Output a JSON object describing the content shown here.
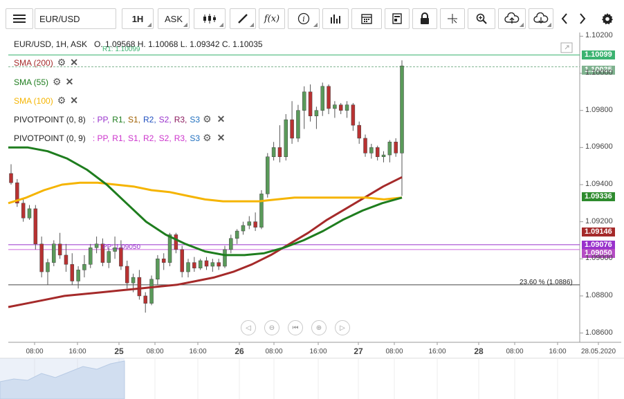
{
  "toolbar": {
    "symbol": "EUR/USD",
    "timeframe": "1H",
    "price_type": "ASK",
    "icons": [
      "menu-icon",
      "candlestick-icon",
      "draw-icon",
      "function-icon",
      "info-icon",
      "bar-chart-icon",
      "calendar-icon",
      "report-icon",
      "lock-icon",
      "crosshair-icon",
      "zoom-icon",
      "cloud-upload-icon",
      "cloud-download-icon",
      "prev-icon",
      "next-icon",
      "settings-icon"
    ]
  },
  "header": {
    "instrument_line": "EUR/USD, 1H, ASK",
    "ohlc": "O. 1.09568 H. 1.10068 L. 1.09342 C. 1.10035",
    "r1_label": "R1: 1.10099"
  },
  "indicators": [
    {
      "label": "SMA (200)",
      "color": "#a52a2a"
    },
    {
      "label": "SMA (55)",
      "color": "#1e7d1e"
    },
    {
      "label": "SMA (100)",
      "color": "#f5b400"
    }
  ],
  "pivots": [
    {
      "label": "PIVOTPOINT (0, 8)",
      "parts": [
        ": PP,",
        "R1,",
        "S1,",
        "R2,",
        "S2,",
        "R3,",
        "S3"
      ],
      "colors": [
        "#9932cc",
        "#1e7d1e",
        "#a06000",
        "#1f4fbf",
        "#9932cc",
        "#8b1a5e",
        "#1f6fbf"
      ]
    },
    {
      "label": "PIVOTPOINT (0, 9)",
      "parts": [
        ": PP,",
        "R1,",
        "S1,",
        "R2,",
        "S2,",
        "R3,",
        "S3"
      ],
      "colors": [
        "#cc33cc",
        "#cc33cc",
        "#cc33cc",
        "#cc33cc",
        "#cc33cc",
        "#cc33cc",
        "#1f6fbf"
      ]
    }
  ],
  "annotations": {
    "pp_label": "PP: 1.09050",
    "fib_label": "23.60 % (1.0886)"
  },
  "price_tags": [
    {
      "value": "1.10099",
      "color": "#3cb371",
      "price": 1.10099
    },
    {
      "value": "1.10035",
      "color": "#7fb28f",
      "price": 1.10035
    },
    {
      "value": "1.09336",
      "color": "#2e8b2e",
      "price": 1.09336
    },
    {
      "value": "1.09146",
      "color": "#a52a2a",
      "price": 1.09146
    },
    {
      "value": "1.09076",
      "color": "#9932cc",
      "price": 1.09076
    },
    {
      "value": "1.09050",
      "color": "#b54cc4",
      "price": 1.0905
    }
  ],
  "chart_data": {
    "type": "candlestick",
    "y_ticks": [
      "1.10200",
      "1.10000",
      "1.09800",
      "1.09600",
      "1.09400",
      "1.09200",
      "1.09000",
      "1.08800",
      "1.08600"
    ],
    "x_labels": [
      {
        "text": "08:00",
        "day": false
      },
      {
        "text": "16:00",
        "day": false
      },
      {
        "text": "25",
        "day": true
      },
      {
        "text": "08:00",
        "day": false
      },
      {
        "text": "16:00",
        "day": false
      },
      {
        "text": "26",
        "day": true
      },
      {
        "text": "08:00",
        "day": false
      },
      {
        "text": "16:00",
        "day": false
      },
      {
        "text": "27",
        "day": true
      },
      {
        "text": "08:00",
        "day": false
      },
      {
        "text": "16:00",
        "day": false
      },
      {
        "text": "28",
        "day": true
      },
      {
        "text": "08:00",
        "day": false
      },
      {
        "text": "16:00",
        "day": false
      },
      {
        "text": "28.05.2020",
        "day": false
      }
    ],
    "ylim": [
      1.0855,
      1.1022
    ],
    "candles": [
      [
        1.0946,
        1.0951,
        1.094,
        1.0941
      ],
      [
        1.0941,
        1.0943,
        1.0928,
        1.093
      ],
      [
        1.093,
        1.0932,
        1.092,
        1.0922
      ],
      [
        1.0922,
        1.0929,
        1.0921,
        1.0927
      ],
      [
        1.0927,
        1.0929,
        1.0905,
        1.0908
      ],
      [
        1.0908,
        1.0912,
        1.089,
        1.0893
      ],
      [
        1.0893,
        1.09,
        1.0886,
        1.0898
      ],
      [
        1.0898,
        1.091,
        1.0896,
        1.0908
      ],
      [
        1.0908,
        1.0914,
        1.09,
        1.0902
      ],
      [
        1.0902,
        1.0908,
        1.0893,
        1.0897
      ],
      [
        1.0897,
        1.0903,
        1.0886,
        1.0888
      ],
      [
        1.0888,
        1.0896,
        1.0884,
        1.0894
      ],
      [
        1.0894,
        1.0902,
        1.089,
        1.0897
      ],
      [
        1.0897,
        1.0908,
        1.0895,
        1.0906
      ],
      [
        1.0906,
        1.0912,
        1.0903,
        1.0908
      ],
      [
        1.0908,
        1.0911,
        1.0896,
        1.0898
      ],
      [
        1.0898,
        1.0906,
        1.0895,
        1.0904
      ],
      [
        1.0904,
        1.0912,
        1.09,
        1.0906
      ],
      [
        1.0906,
        1.091,
        1.0894,
        1.0896
      ],
      [
        1.0896,
        1.0899,
        1.0884,
        1.0887
      ],
      [
        1.0887,
        1.0892,
        1.0882,
        1.089
      ],
      [
        1.089,
        1.0894,
        1.0878,
        1.088
      ],
      [
        1.088,
        1.0882,
        1.0871,
        1.0876
      ],
      [
        1.0876,
        1.0891,
        1.0875,
        1.0889
      ],
      [
        1.0889,
        1.0902,
        1.0886,
        1.09
      ],
      [
        1.09,
        1.0903,
        1.0894,
        1.0898
      ],
      [
        1.0898,
        1.0914,
        1.0896,
        1.0913
      ],
      [
        1.0913,
        1.0914,
        1.0903,
        1.0905
      ],
      [
        1.0905,
        1.0907,
        1.089,
        1.0893
      ],
      [
        1.0893,
        1.09,
        1.089,
        1.0898
      ],
      [
        1.0898,
        1.0901,
        1.0893,
        1.0895
      ],
      [
        1.0895,
        1.09,
        1.0894,
        1.0899
      ],
      [
        1.0899,
        1.0901,
        1.0894,
        1.0896
      ],
      [
        1.0896,
        1.09,
        1.0893,
        1.0898
      ],
      [
        1.0898,
        1.09,
        1.0894,
        1.0896
      ],
      [
        1.0896,
        1.0907,
        1.0895,
        1.0905
      ],
      [
        1.0905,
        1.0913,
        1.0903,
        1.0911
      ],
      [
        1.0911,
        1.0916,
        1.0908,
        1.0915
      ],
      [
        1.0915,
        1.092,
        1.0913,
        1.0918
      ],
      [
        1.0918,
        1.0923,
        1.0916,
        1.092
      ],
      [
        1.092,
        1.0925,
        1.0915,
        1.0917
      ],
      [
        1.0917,
        1.0937,
        1.0916,
        1.0935
      ],
      [
        1.0935,
        1.0957,
        1.0933,
        1.0955
      ],
      [
        1.0955,
        1.0963,
        1.0953,
        1.096
      ],
      [
        1.096,
        1.0972,
        1.0952,
        1.0955
      ],
      [
        1.0955,
        1.0978,
        1.0953,
        1.0975
      ],
      [
        1.0975,
        1.0985,
        1.0962,
        1.0965
      ],
      [
        1.0965,
        1.0983,
        1.0963,
        1.098
      ],
      [
        1.098,
        1.0993,
        1.097,
        1.099
      ],
      [
        1.099,
        1.0994,
        1.0974,
        1.0977
      ],
      [
        1.0977,
        1.0982,
        1.097,
        1.098
      ],
      [
        1.098,
        1.0995,
        1.0977,
        1.0993
      ],
      [
        1.0993,
        1.0994,
        1.0978,
        1.0981
      ],
      [
        1.0981,
        1.0985,
        1.0976,
        1.0983
      ],
      [
        1.0983,
        1.0984,
        1.0978,
        1.098
      ],
      [
        1.098,
        1.0985,
        1.0976,
        1.0983
      ],
      [
        1.0983,
        1.0984,
        1.0969,
        1.0972
      ],
      [
        1.0972,
        1.0974,
        1.0962,
        1.0965
      ],
      [
        1.0965,
        1.0967,
        1.0955,
        1.0957
      ],
      [
        1.0957,
        1.0962,
        1.0954,
        1.096
      ],
      [
        1.096,
        1.0961,
        1.0953,
        1.0955
      ],
      [
        1.0955,
        1.0958,
        1.0952,
        1.0956
      ],
      [
        1.0956,
        1.0964,
        1.0952,
        1.0963
      ],
      [
        1.0963,
        1.0965,
        1.0955,
        1.0957
      ],
      [
        1.0957,
        1.1007,
        1.0934,
        1.1004
      ]
    ],
    "sma200": [
      1.0874,
      1.0876,
      1.0878,
      1.088,
      1.0881,
      1.0882,
      1.0883,
      1.0884,
      1.0885,
      1.0886,
      1.0888,
      1.089,
      1.0893,
      1.0897,
      1.0902,
      1.0908,
      1.0914,
      1.0921,
      1.0927,
      1.0933,
      1.0939,
      1.0944
    ],
    "sma55": [
      1.096,
      1.096,
      1.0958,
      1.0954,
      1.0948,
      1.094,
      1.093,
      1.092,
      1.0913,
      1.0908,
      1.0904,
      1.0902,
      1.0902,
      1.0903,
      1.0906,
      1.091,
      1.0915,
      1.0921,
      1.0926,
      1.093,
      1.0933
    ],
    "sma100": [
      1.093,
      1.0933,
      1.0937,
      1.094,
      1.0941,
      1.0941,
      1.094,
      1.0939,
      1.0937,
      1.0936,
      1.0934,
      1.0932,
      1.0931,
      1.0931,
      1.0931,
      1.0932,
      1.0933,
      1.0933,
      1.0933,
      1.0933,
      1.0933,
      1.0932,
      1.0933
    ],
    "pp_lines": [
      1.09076,
      1.0905
    ],
    "r1": 1.10099,
    "fib_level": 1.0886,
    "last_price": 1.10035
  }
}
